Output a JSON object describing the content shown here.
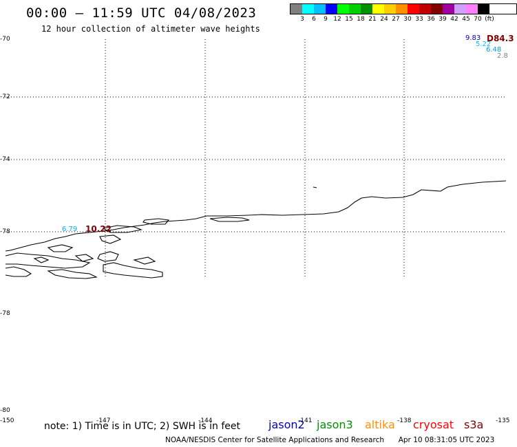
{
  "title": "00:00 – 11:59 UTC 04/08/2023",
  "subtitle": "12 hour collection of altimeter wave heights",
  "color_scale": {
    "unit": "(ft)",
    "colors": [
      "#808080",
      "#00ffff",
      "#00c0ff",
      "#0000ff",
      "#00ff00",
      "#00d000",
      "#009000",
      "#ffff00",
      "#ffd000",
      "#ff9000",
      "#ff0000",
      "#c00000",
      "#800000",
      "#a000a0",
      "#d0a0ff",
      "#ff80ff",
      "#000000"
    ],
    "labels": [
      "3",
      "6",
      "9",
      "12",
      "15",
      "18",
      "21",
      "24",
      "27",
      "30",
      "33",
      "36",
      "39",
      "42",
      "45",
      "70"
    ]
  },
  "lat_labels": [
    "-70",
    "-72",
    "-74",
    "-78",
    "-78",
    "-80"
  ],
  "lon_labels": [
    "-150",
    "-147",
    "-144",
    "-141",
    "-138",
    "-135"
  ],
  "observations": [
    {
      "text": "9.83",
      "color": "#0000c0"
    },
    {
      "text": "D84.3",
      "color": "#800000"
    },
    {
      "text": "5.22",
      "color": "#00c0ff"
    },
    {
      "text": "6.48",
      "color": "#00a0d0"
    },
    {
      "text": "2.8",
      "color": "#808080"
    },
    {
      "text": "6.79",
      "color": "#00b0e0"
    },
    {
      "text": "10.22",
      "color": "#800000"
    }
  ],
  "note": {
    "text": "note: 1) Time is in UTC; 2) SWH is in feet"
  },
  "legend": [
    {
      "name": "jason2",
      "color": "#0000c0"
    },
    {
      "name": "jason3",
      "color": "#009000"
    },
    {
      "name": "altika",
      "color": "#ff9000"
    },
    {
      "name": "cryosat",
      "color": "#ff0000"
    },
    {
      "name": "s3a",
      "color": "#800000"
    }
  ],
  "footer": {
    "credit": "NOAA/NESDIS Center for Satellite Applications and Research",
    "timestamp": "Apr 10 08:31:05 UTC 2023"
  }
}
